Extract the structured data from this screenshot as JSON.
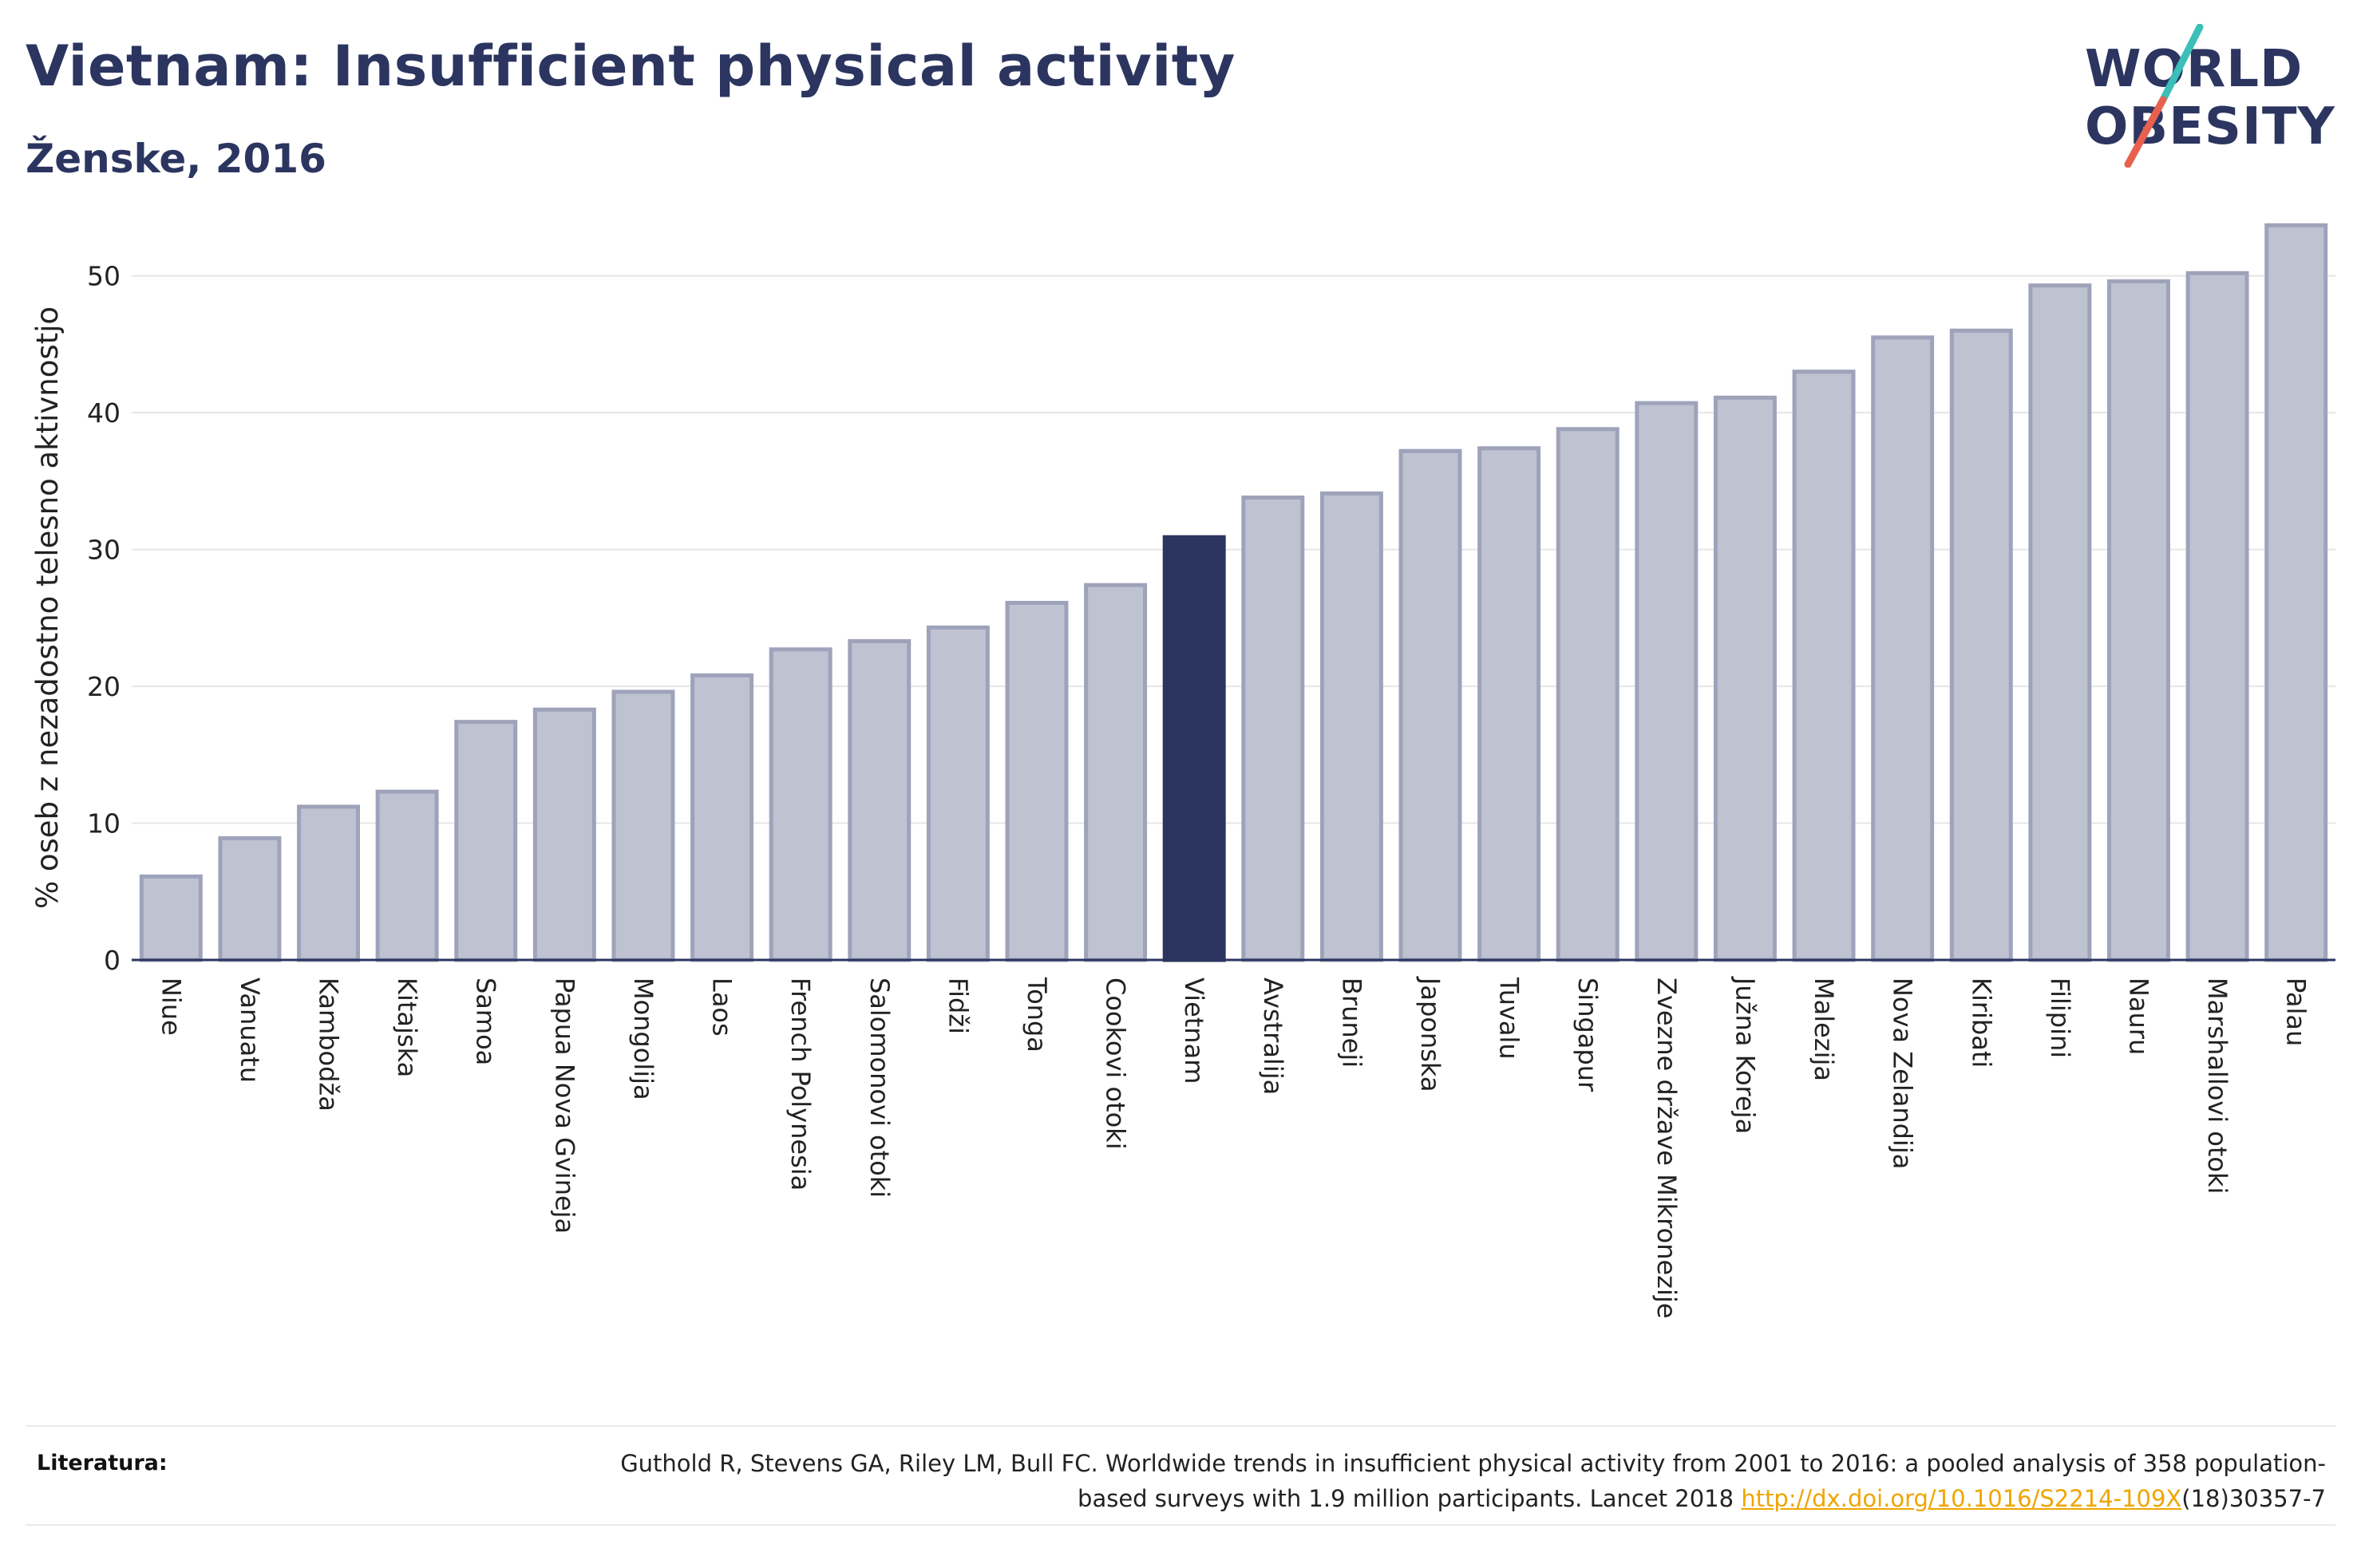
{
  "header": {
    "title": "Vietnam: Insufficient physical activity",
    "subtitle": "Ženske, 2016"
  },
  "logo": {
    "line1": "WORLD",
    "line2": "OBESITY",
    "colors": {
      "text": "#2b3560",
      "slash_top": "#3bbfb8",
      "slash_bottom": "#e8614f"
    }
  },
  "colors": {
    "bar_fill": "#bfc2d0",
    "bar_stroke": "#9ea3bb",
    "highlight_fill": "#2b3560",
    "grid": "#e6e6e6",
    "axis": "#2b3560"
  },
  "chart_data": {
    "type": "bar",
    "ylabel": "% oseb z nezadostno telesno aktivnostjo",
    "xlabel": "",
    "ylim": [
      0,
      55
    ],
    "yticks": [
      0,
      10,
      20,
      30,
      40,
      50
    ],
    "grid": true,
    "highlight": "Vietnam",
    "categories": [
      "Niue",
      "Vanuatu",
      "Kambodža",
      "Kitajska",
      "Samoa",
      "Papua Nova Gvineja",
      "Mongolija",
      "Laos",
      "French Polynesia",
      "Salomonovi otoki",
      "Fidži",
      "Tonga",
      "Cookovi otoki",
      "Vietnam",
      "Avstralija",
      "Bruneji",
      "Japonska",
      "Tuvalu",
      "Singapur",
      "Zvezne države Mikronezije",
      "Južna Koreja",
      "Malezija",
      "Nova Zelandija",
      "Kiribati",
      "Filipini",
      "Nauru",
      "Marshallovi otoki",
      "Palau"
    ],
    "values": [
      6.1,
      8.9,
      11.2,
      12.3,
      17.4,
      18.3,
      19.6,
      20.8,
      22.7,
      23.3,
      24.3,
      26.1,
      27.4,
      30.9,
      33.8,
      34.1,
      37.2,
      37.4,
      38.8,
      40.7,
      41.1,
      43.0,
      45.5,
      46.0,
      49.3,
      49.6,
      50.2,
      53.7
    ]
  },
  "references": {
    "label": "Literatura:",
    "text_before": "Guthold R, Stevens GA, Riley LM, Bull FC. Worldwide trends in insufficient physical activity from 2001 to 2016: a pooled analysis of 358 population-based surveys with 1.9 million participants. Lancet 2018 ",
    "link": "http://dx.doi.org/10.1016/S2214-109X",
    "text_after": "(18)30357-7"
  }
}
